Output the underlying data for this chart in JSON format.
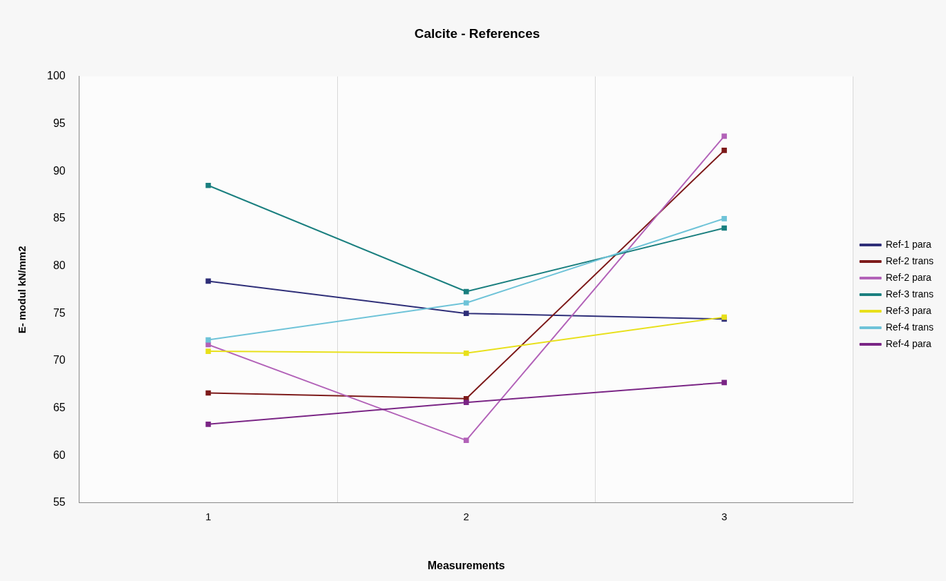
{
  "chart_data": {
    "type": "line",
    "title": "Calcite - References",
    "xlabel": "Measurements",
    "ylabel": "E- modul kN/mm2",
    "categories": [
      "1",
      "2",
      "3"
    ],
    "ylim": [
      55,
      100
    ],
    "yticks": [
      55,
      60,
      65,
      70,
      75,
      80,
      85,
      90,
      95,
      100
    ],
    "grid": "x",
    "legend": "right",
    "marker": "square",
    "line_style": "solid",
    "series": [
      {
        "name": "Ref-1 para",
        "color": "#2e2e78",
        "values": [
          78.4,
          75.0,
          74.4
        ]
      },
      {
        "name": "Ref-2 trans",
        "color": "#7d1a1a",
        "values": [
          66.6,
          66.0,
          92.2
        ]
      },
      {
        "name": "Ref-2 para",
        "color": "#b262b8",
        "values": [
          71.7,
          61.6,
          93.7
        ]
      },
      {
        "name": "Ref-3 trans",
        "color": "#1a7f7f",
        "values": [
          88.5,
          77.3,
          84.0
        ]
      },
      {
        "name": "Ref-3 para",
        "color": "#e8e01a",
        "values": [
          71.0,
          70.8,
          74.6
        ]
      },
      {
        "name": "Ref-4 trans",
        "color": "#6ec3d8",
        "values": [
          72.2,
          76.1,
          85.0
        ]
      },
      {
        "name": "Ref-4 para",
        "color": "#7a2585",
        "values": [
          63.3,
          65.6,
          67.7
        ]
      }
    ]
  }
}
